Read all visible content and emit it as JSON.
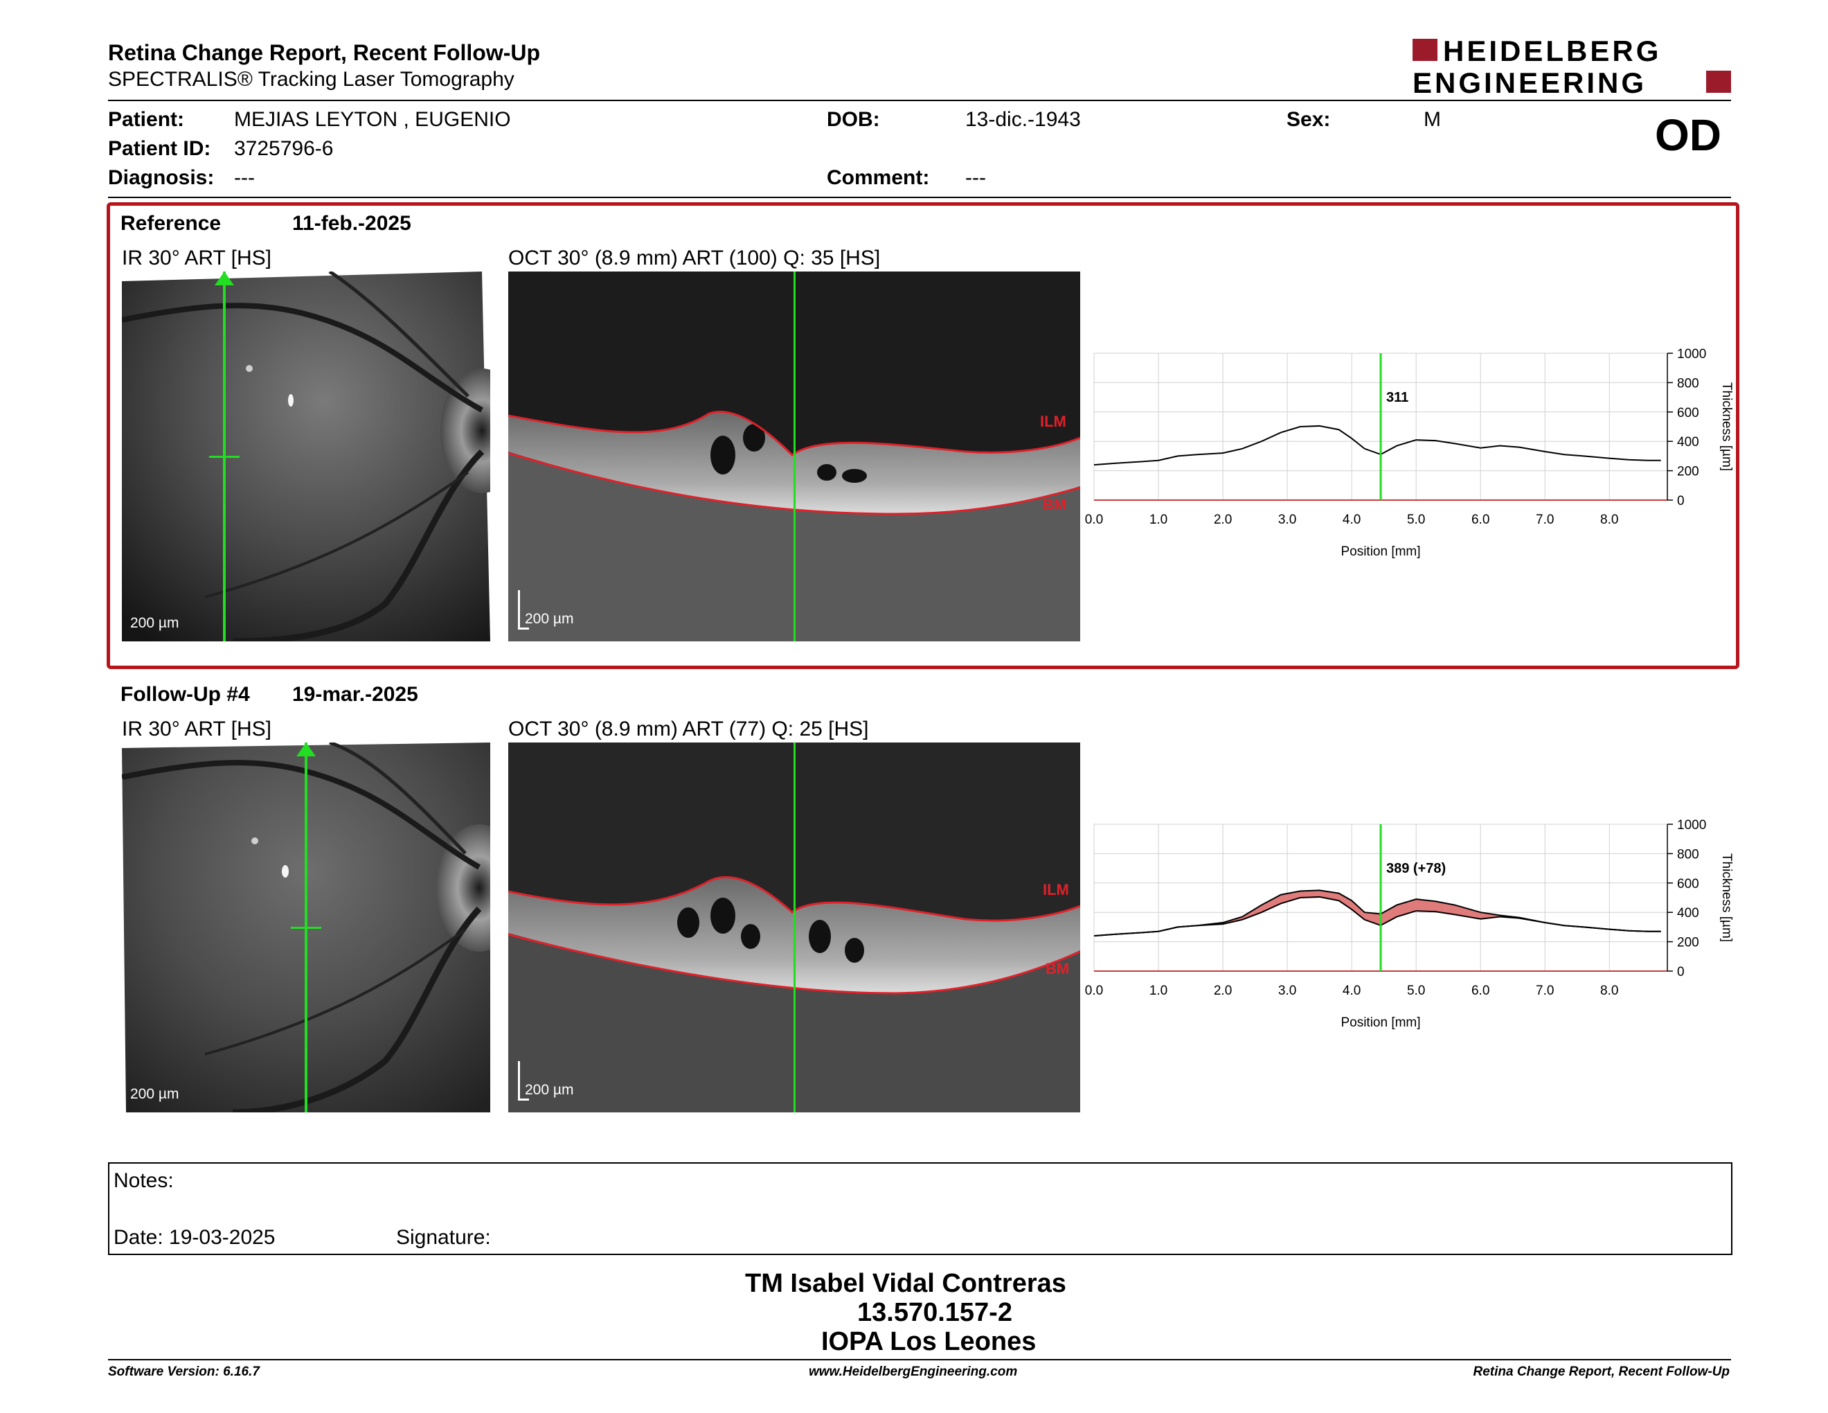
{
  "header": {
    "title": "Retina Change Report, Recent Follow-Up",
    "subtitle": "SPECTRALIS® Tracking Laser Tomography",
    "logo_line1": "HEIDELBERG",
    "logo_line2": "ENGINEERING",
    "logo_color": "#9b1b2a"
  },
  "patient": {
    "patient_label": "Patient:",
    "patient_name": "MEJIAS LEYTON , EUGENIO",
    "id_label": "Patient ID:",
    "id_value": "3725796-6",
    "diagnosis_label": "Diagnosis:",
    "diagnosis_value": "---",
    "dob_label": "DOB:",
    "dob_value": "13-dic.-1943",
    "comment_label": "Comment:",
    "comment_value": "---",
    "sex_label": "Sex:",
    "sex_value": "M",
    "eye": "OD"
  },
  "sections": [
    {
      "label": "Reference",
      "date": "11-feb.-2025",
      "ir_caption": "IR 30° ART [HS]",
      "oct_caption": "OCT 30° (8.9 mm) ART (100) Q: 35 [HS]",
      "scale": "200 µm",
      "ilm": "ILM",
      "bm": "BM"
    },
    {
      "label": "Follow-Up #4",
      "date": "19-mar.-2025",
      "ir_caption": "IR 30° ART [HS]",
      "oct_caption": "OCT 30° (8.9 mm) ART (77) Q: 25 [HS]",
      "scale": "200 µm",
      "ilm": "ILM",
      "bm": "BM"
    }
  ],
  "chart_data": [
    {
      "type": "line",
      "xlabel": "Position [mm]",
      "ylabel": "Thickness [µm]",
      "xlim": [
        0,
        8.9
      ],
      "ylim": [
        0,
        1000
      ],
      "x_ticks": [
        "0.0",
        "1.0",
        "2.0",
        "3.0",
        "4.0",
        "5.0",
        "6.0",
        "7.0",
        "8.0"
      ],
      "y_ticks": [
        "0",
        "200",
        "400",
        "600",
        "800",
        "1000"
      ],
      "grid": true,
      "marker_x": 4.45,
      "marker_label": "311",
      "series": [
        {
          "x": [
            0.0,
            0.3,
            0.6,
            1.0,
            1.3,
            1.6,
            2.0,
            2.3,
            2.6,
            2.9,
            3.2,
            3.5,
            3.8,
            4.0,
            4.2,
            4.45,
            4.7,
            5.0,
            5.3,
            5.6,
            6.0,
            6.3,
            6.6,
            7.0,
            7.3,
            7.6,
            8.0,
            8.3,
            8.6,
            8.8
          ],
          "y": [
            240,
            250,
            258,
            270,
            300,
            310,
            320,
            350,
            400,
            460,
            500,
            505,
            480,
            420,
            350,
            311,
            370,
            410,
            405,
            385,
            355,
            370,
            360,
            330,
            310,
            300,
            285,
            275,
            270,
            270
          ]
        }
      ]
    },
    {
      "type": "line",
      "xlabel": "Position [mm]",
      "ylabel": "Thickness [µm]",
      "xlim": [
        0,
        8.9
      ],
      "ylim": [
        0,
        1000
      ],
      "x_ticks": [
        "0.0",
        "1.0",
        "2.0",
        "3.0",
        "4.0",
        "5.0",
        "6.0",
        "7.0",
        "8.0"
      ],
      "y_ticks": [
        "0",
        "200",
        "400",
        "600",
        "800",
        "1000"
      ],
      "grid": true,
      "marker_x": 4.45,
      "marker_label": "389 (+78)",
      "series": [
        {
          "x": [
            0.0,
            0.3,
            0.6,
            1.0,
            1.3,
            1.6,
            2.0,
            2.3,
            2.6,
            2.9,
            3.2,
            3.5,
            3.8,
            4.0,
            4.2,
            4.45,
            4.7,
            5.0,
            5.3,
            5.6,
            6.0,
            6.3,
            6.6,
            7.0,
            7.3,
            7.6,
            8.0,
            8.3,
            8.6,
            8.8
          ],
          "y": [
            240,
            250,
            258,
            270,
            300,
            310,
            330,
            370,
            450,
            520,
            545,
            550,
            530,
            480,
            400,
            389,
            450,
            490,
            475,
            450,
            400,
            380,
            365,
            330,
            310,
            300,
            285,
            275,
            270,
            270
          ]
        },
        {
          "x": [
            0.0,
            0.3,
            0.6,
            1.0,
            1.3,
            1.6,
            2.0,
            2.3,
            2.6,
            2.9,
            3.2,
            3.5,
            3.8,
            4.0,
            4.2,
            4.45,
            4.7,
            5.0,
            5.3,
            5.6,
            6.0,
            6.3,
            6.6,
            7.0,
            7.3,
            7.6,
            8.0,
            8.3,
            8.6,
            8.8
          ],
          "y": [
            240,
            250,
            258,
            270,
            300,
            310,
            320,
            350,
            400,
            460,
            500,
            505,
            480,
            420,
            350,
            311,
            370,
            410,
            405,
            385,
            355,
            370,
            360,
            330,
            310,
            300,
            285,
            275,
            270,
            270
          ]
        }
      ],
      "change_fill_color": "#e07b7b"
    }
  ],
  "notes": {
    "notes_label": "Notes:",
    "date_label": "Date: 19-03-2025",
    "signature_label": "Signature:"
  },
  "signature_block": {
    "line1": "TM Isabel Vidal Contreras",
    "line2": "13.570.157-2",
    "line3": "IOPA Los Leones"
  },
  "footer": {
    "software": "Software Version: 6.16.7",
    "website": "www.HeidelbergEngineering.com",
    "report_name": "Retina Change Report, Recent Follow-Up"
  },
  "colors": {
    "section_border": "#b8141c",
    "scan_line": "#22dd22",
    "ilm_bm_line": "#e0212a",
    "change_fill": "#e07b7b"
  }
}
